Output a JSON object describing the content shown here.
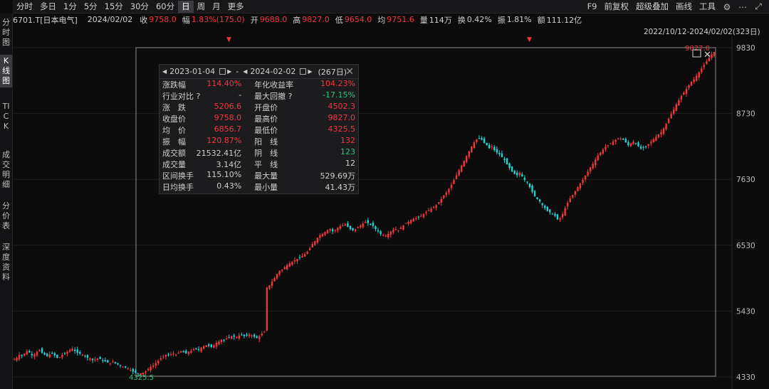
{
  "toolbar": {
    "periods": [
      {
        "label": "分时",
        "active": false
      },
      {
        "label": "多日",
        "active": false
      },
      {
        "label": "1分",
        "active": false
      },
      {
        "label": "5分",
        "active": false
      },
      {
        "label": "15分",
        "active": false
      },
      {
        "label": "30分",
        "active": false
      },
      {
        "label": "60分",
        "active": false
      },
      {
        "label": "日",
        "active": true
      },
      {
        "label": "周",
        "active": false
      },
      {
        "label": "月",
        "active": false
      },
      {
        "label": "更多",
        "active": false
      }
    ],
    "right": [
      "F9",
      "前复权",
      "超级叠加",
      "画线",
      "工具"
    ]
  },
  "info": {
    "code": "6701.T[日本电气]",
    "date": "2024/02/02",
    "close_label": "收",
    "close": "9758.0",
    "amp_label": "幅",
    "amp": "1.83%(175.0)",
    "open_label": "开",
    "open": "9688.0",
    "high_label": "高",
    "high": "9827.0",
    "low_label": "低",
    "low": "9654.0",
    "avg_label": "均",
    "avg": "9751.6",
    "vol_label": "量",
    "vol": "114万",
    "turn_label": "换",
    "turn": "0.42%",
    "swing_label": "振",
    "swing": "1.81%",
    "amount_label": "额",
    "amount": "111.12亿"
  },
  "leftnav": [
    {
      "label": "分时图",
      "active": false
    },
    {
      "label": "K线图",
      "active": true
    },
    {
      "label": "TICK",
      "active": false
    },
    {
      "label": "成交明细",
      "active": false
    },
    {
      "label": "分价表",
      "active": false
    },
    {
      "label": "深度资料",
      "active": false
    }
  ],
  "range_label": "2022/10/12-2024/02/02(323日)",
  "panel": {
    "start": "2023-01-04",
    "dash": "-",
    "end": "2024-02-02",
    "days": "(267日)",
    "rows": [
      {
        "l": "涨跌幅",
        "lv": "114.40%",
        "lc": "red",
        "r": "年化收益率",
        "rv": "104.23%",
        "rc": "red"
      },
      {
        "l": "行业对比 ?",
        "lv": "-",
        "lc": "",
        "r": "最大回撤 ?",
        "rv": "-17.15%",
        "rc": "green"
      },
      {
        "l": "涨　跌",
        "lv": "5206.6",
        "lc": "red",
        "r": "开盘价",
        "rv": "4502.3",
        "rc": "red"
      },
      {
        "l": "收盘价",
        "lv": "9758.0",
        "lc": "red",
        "r": "最高价",
        "rv": "9827.0",
        "rc": "red"
      },
      {
        "l": "均　价",
        "lv": "6856.7",
        "lc": "red",
        "r": "最低价",
        "rv": "4325.5",
        "rc": "red"
      },
      {
        "l": "振　幅",
        "lv": "120.87%",
        "lc": "red",
        "r": "阳　线",
        "rv": "132",
        "rc": "red"
      },
      {
        "l": "成交额",
        "lv": "21532.41亿",
        "lc": "",
        "r": "阴　线",
        "rv": "123",
        "rc": "green"
      },
      {
        "l": "成交量",
        "lv": "3.14亿",
        "lc": "",
        "r": "平　线",
        "rv": "12",
        "rc": ""
      },
      {
        "l": "区间换手",
        "lv": "115.10%",
        "lc": "",
        "r": "最大量",
        "rv": "529.69万",
        "rc": ""
      },
      {
        "l": "日均换手",
        "lv": "0.43%",
        "lc": "",
        "r": "最小量",
        "rv": "41.43万",
        "rc": ""
      }
    ]
  },
  "chart_data": {
    "type": "candlestick",
    "y_ticks": [
      "9830",
      "8730",
      "7630",
      "6530",
      "5430",
      "4330"
    ],
    "ylim": [
      4330,
      9830
    ],
    "up_color": "#f0363f",
    "down_color": "#22d3d3",
    "high_label": "9827.0",
    "low_label": "4325.5",
    "closes": [
      4620,
      4650,
      4700,
      4680,
      4720,
      4760,
      4740,
      4690,
      4710,
      4750,
      4780,
      4730,
      4700,
      4680,
      4710,
      4720,
      4690,
      4650,
      4660,
      4700,
      4720,
      4750,
      4780,
      4800,
      4760,
      4730,
      4720,
      4700,
      4680,
      4650,
      4640,
      4610,
      4620,
      4640,
      4630,
      4600,
      4590,
      4570,
      4560,
      4580,
      4560,
      4540,
      4520,
      4500,
      4490,
      4470,
      4450,
      4420,
      4400,
      4380,
      4390,
      4400,
      4420,
      4460,
      4500,
      4520,
      4560,
      4600,
      4640,
      4670,
      4700,
      4690,
      4710,
      4720,
      4700,
      4730,
      4760,
      4740,
      4720,
      4750,
      4760,
      4790,
      4800,
      4780,
      4820,
      4840,
      4860,
      4850,
      4830,
      4860,
      4900,
      4920,
      4950,
      4940,
      4970,
      4990,
      5010,
      5000,
      4990,
      5020,
      5030,
      5010,
      5020,
      5040,
      5020,
      5000,
      4980,
      5010,
      5050,
      5080,
      5820,
      5860,
      5920,
      5980,
      6050,
      6100,
      6120,
      6160,
      6200,
      6230,
      6250,
      6280,
      6300,
      6320,
      6350,
      6380,
      6420,
      6480,
      6550,
      6600,
      6650,
      6700,
      6720,
      6750,
      6780,
      6800,
      6760,
      6780,
      6820,
      6850,
      6860,
      6880,
      6840,
      6800,
      6780,
      6800,
      6830,
      6860,
      6890,
      6920,
      6900,
      6880,
      6850,
      6800,
      6760,
      6720,
      6700,
      6690,
      6720,
      6760,
      6790,
      6800,
      6780,
      6820,
      6860,
      6900,
      6920,
      6950,
      6970,
      6980,
      7000,
      7020,
      7050,
      7080,
      7110,
      7140,
      7170,
      7200,
      7250,
      7300,
      7360,
      7410,
      7470,
      7540,
      7620,
      7700,
      7780,
      7860,
      7940,
      8020,
      8100,
      8180,
      8250,
      8300,
      8320,
      8290,
      8240,
      8200,
      8150,
      8180,
      8120,
      8080,
      8050,
      8000,
      7950,
      7880,
      7820,
      7760,
      7720,
      7700,
      7740,
      7680,
      7620,
      7580,
      7500,
      7420,
      7350,
      7300,
      7260,
      7200,
      7150,
      7100,
      7080,
      7050,
      7020,
      6960,
      6980,
      7050,
      7150,
      7240,
      7310,
      7370,
      7430,
      7500,
      7560,
      7620,
      7690,
      7760,
      7830,
      7890,
      7960,
      8030,
      8080,
      8130,
      8170,
      8200,
      8230,
      8260,
      8290,
      8320,
      8310,
      8290,
      8250,
      8200,
      8230,
      8260,
      8220,
      8180,
      8140,
      8160,
      8180,
      8220,
      8260,
      8300,
      8340,
      8380,
      8420,
      8480,
      8560,
      8640,
      8720,
      8800,
      8880,
      8950,
      9020,
      9080,
      9140,
      9200,
      9260,
      9300,
      9360,
      9420,
      9480,
      9540,
      9600,
      9660,
      9720,
      9758
    ]
  }
}
